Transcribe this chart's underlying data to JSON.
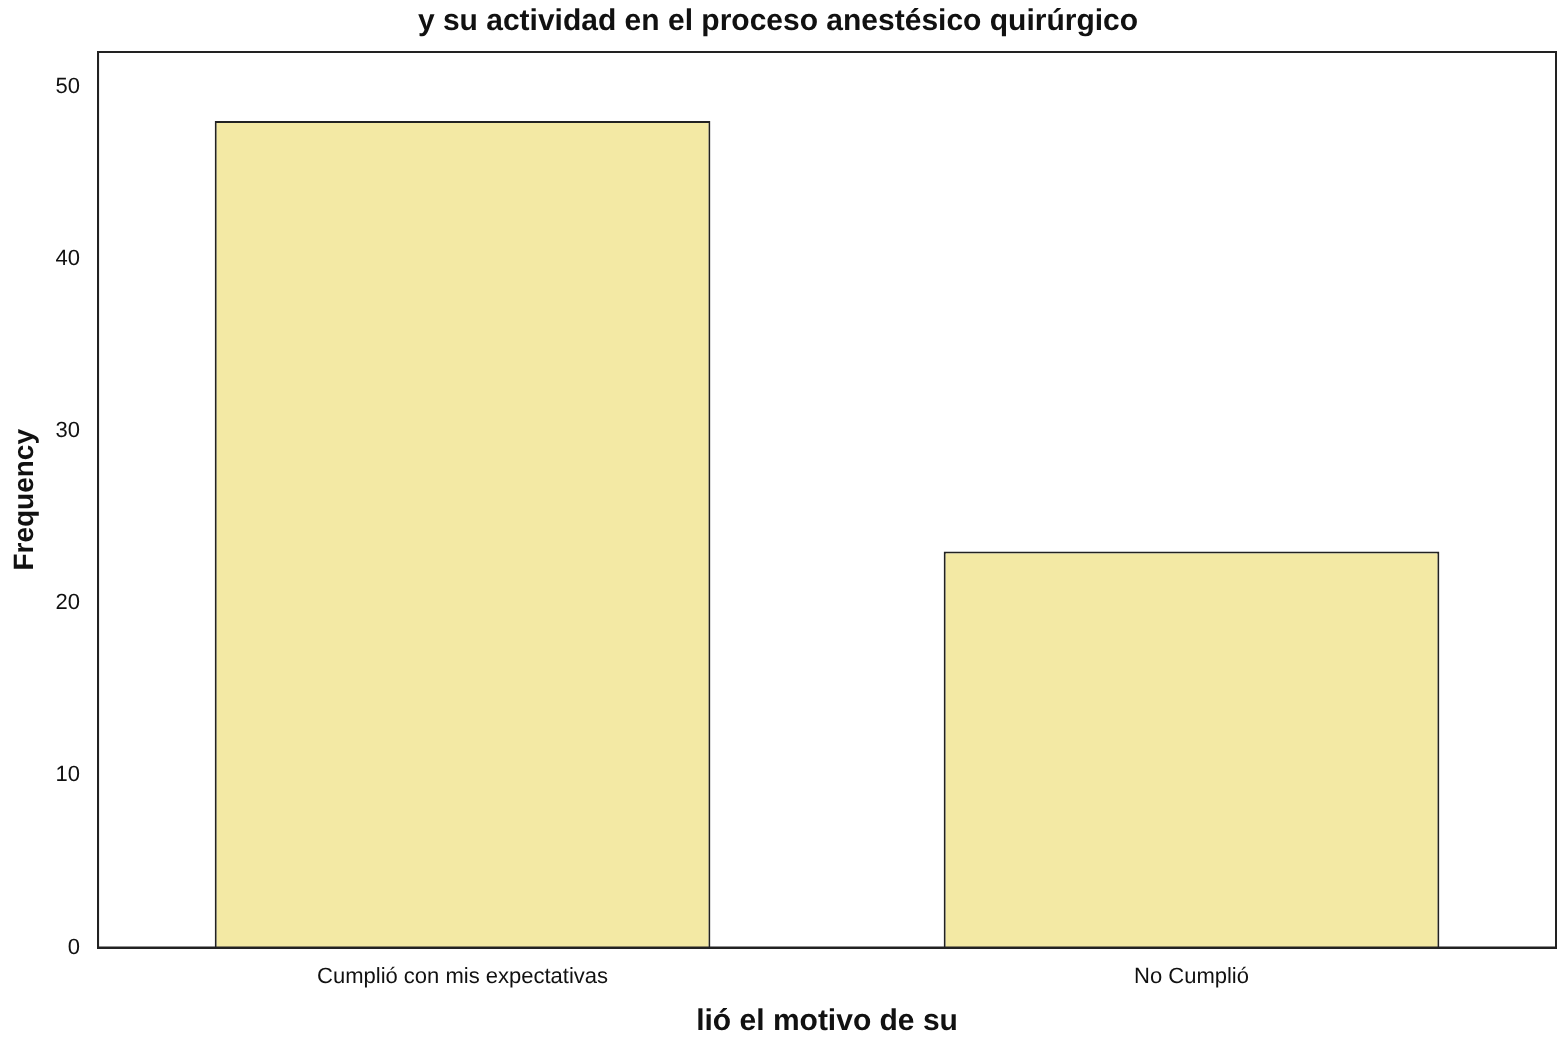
{
  "chart_data": {
    "type": "bar",
    "title": "y su actividad en el proceso anestésico quirúrgico",
    "xlabel": "lió el motivo de su",
    "ylabel": "Frequency",
    "categories": [
      "Cumplió con mis expectativas",
      "No Cumplió"
    ],
    "values": [
      48,
      23
    ],
    "color": "#f3e9a4",
    "ylim": [
      0,
      52
    ],
    "yticks": [
      0,
      10,
      20,
      30,
      40,
      50
    ],
    "grid": false,
    "legend": false
  }
}
